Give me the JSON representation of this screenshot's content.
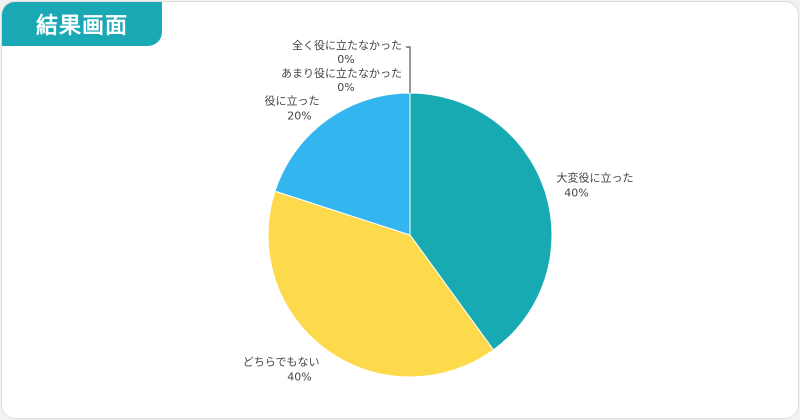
{
  "header": {
    "badge_label": "結果画面"
  },
  "chart_data": {
    "type": "pie",
    "unit": "%",
    "slices": [
      {
        "label": "大変役に立った",
        "value": 40,
        "color": "#18aab2"
      },
      {
        "label": "どちらでもない",
        "value": 40,
        "color": "#fdd94c"
      },
      {
        "label": "役に立った",
        "value": 20,
        "color": "#33b5ef"
      },
      {
        "label": "あまり役に立たなかった",
        "value": 0,
        "color": "#ff7a6b"
      },
      {
        "label": "全く役に立たなかった",
        "value": 0,
        "color": "#b04fc4"
      }
    ],
    "legend": "none"
  }
}
